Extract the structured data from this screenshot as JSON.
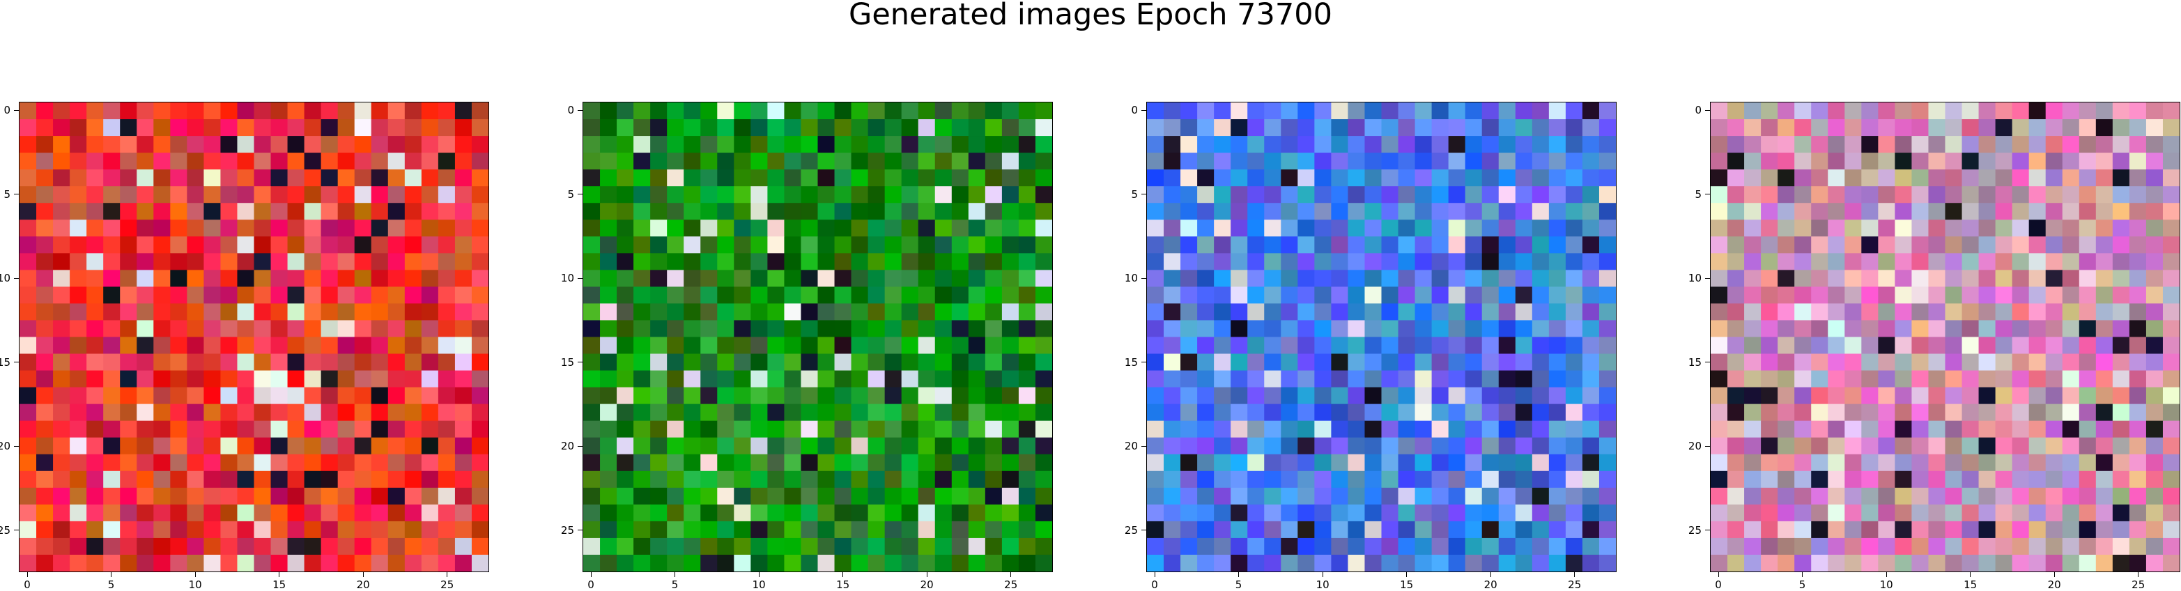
{
  "title": "Generated images Epoch 73700",
  "chart_data": [
    {
      "type": "heatmap",
      "grid": [
        28,
        28
      ],
      "tint": "#e83a3a",
      "xticks": [
        "0",
        "5",
        "10",
        "15",
        "20",
        "25"
      ],
      "yticks": [
        "0",
        "5",
        "10",
        "15",
        "20",
        "25"
      ]
    },
    {
      "type": "heatmap",
      "grid": [
        28,
        28
      ],
      "tint": "#178a17",
      "xticks": [
        "0",
        "5",
        "10",
        "15",
        "20",
        "25"
      ],
      "yticks": [
        "0",
        "5",
        "10",
        "15",
        "20",
        "25"
      ]
    },
    {
      "type": "heatmap",
      "grid": [
        28,
        28
      ],
      "tint": "#4d79e6",
      "xticks": [
        "0",
        "5",
        "10",
        "15",
        "20",
        "25"
      ],
      "yticks": [
        "0",
        "5",
        "10",
        "15",
        "20",
        "25"
      ]
    },
    {
      "type": "heatmap",
      "grid": [
        28,
        28
      ],
      "tint": "#c98fb0",
      "xticks": [
        "0",
        "5",
        "10",
        "15",
        "20",
        "25"
      ],
      "yticks": [
        "0",
        "5",
        "10",
        "15",
        "20",
        "25"
      ]
    }
  ]
}
